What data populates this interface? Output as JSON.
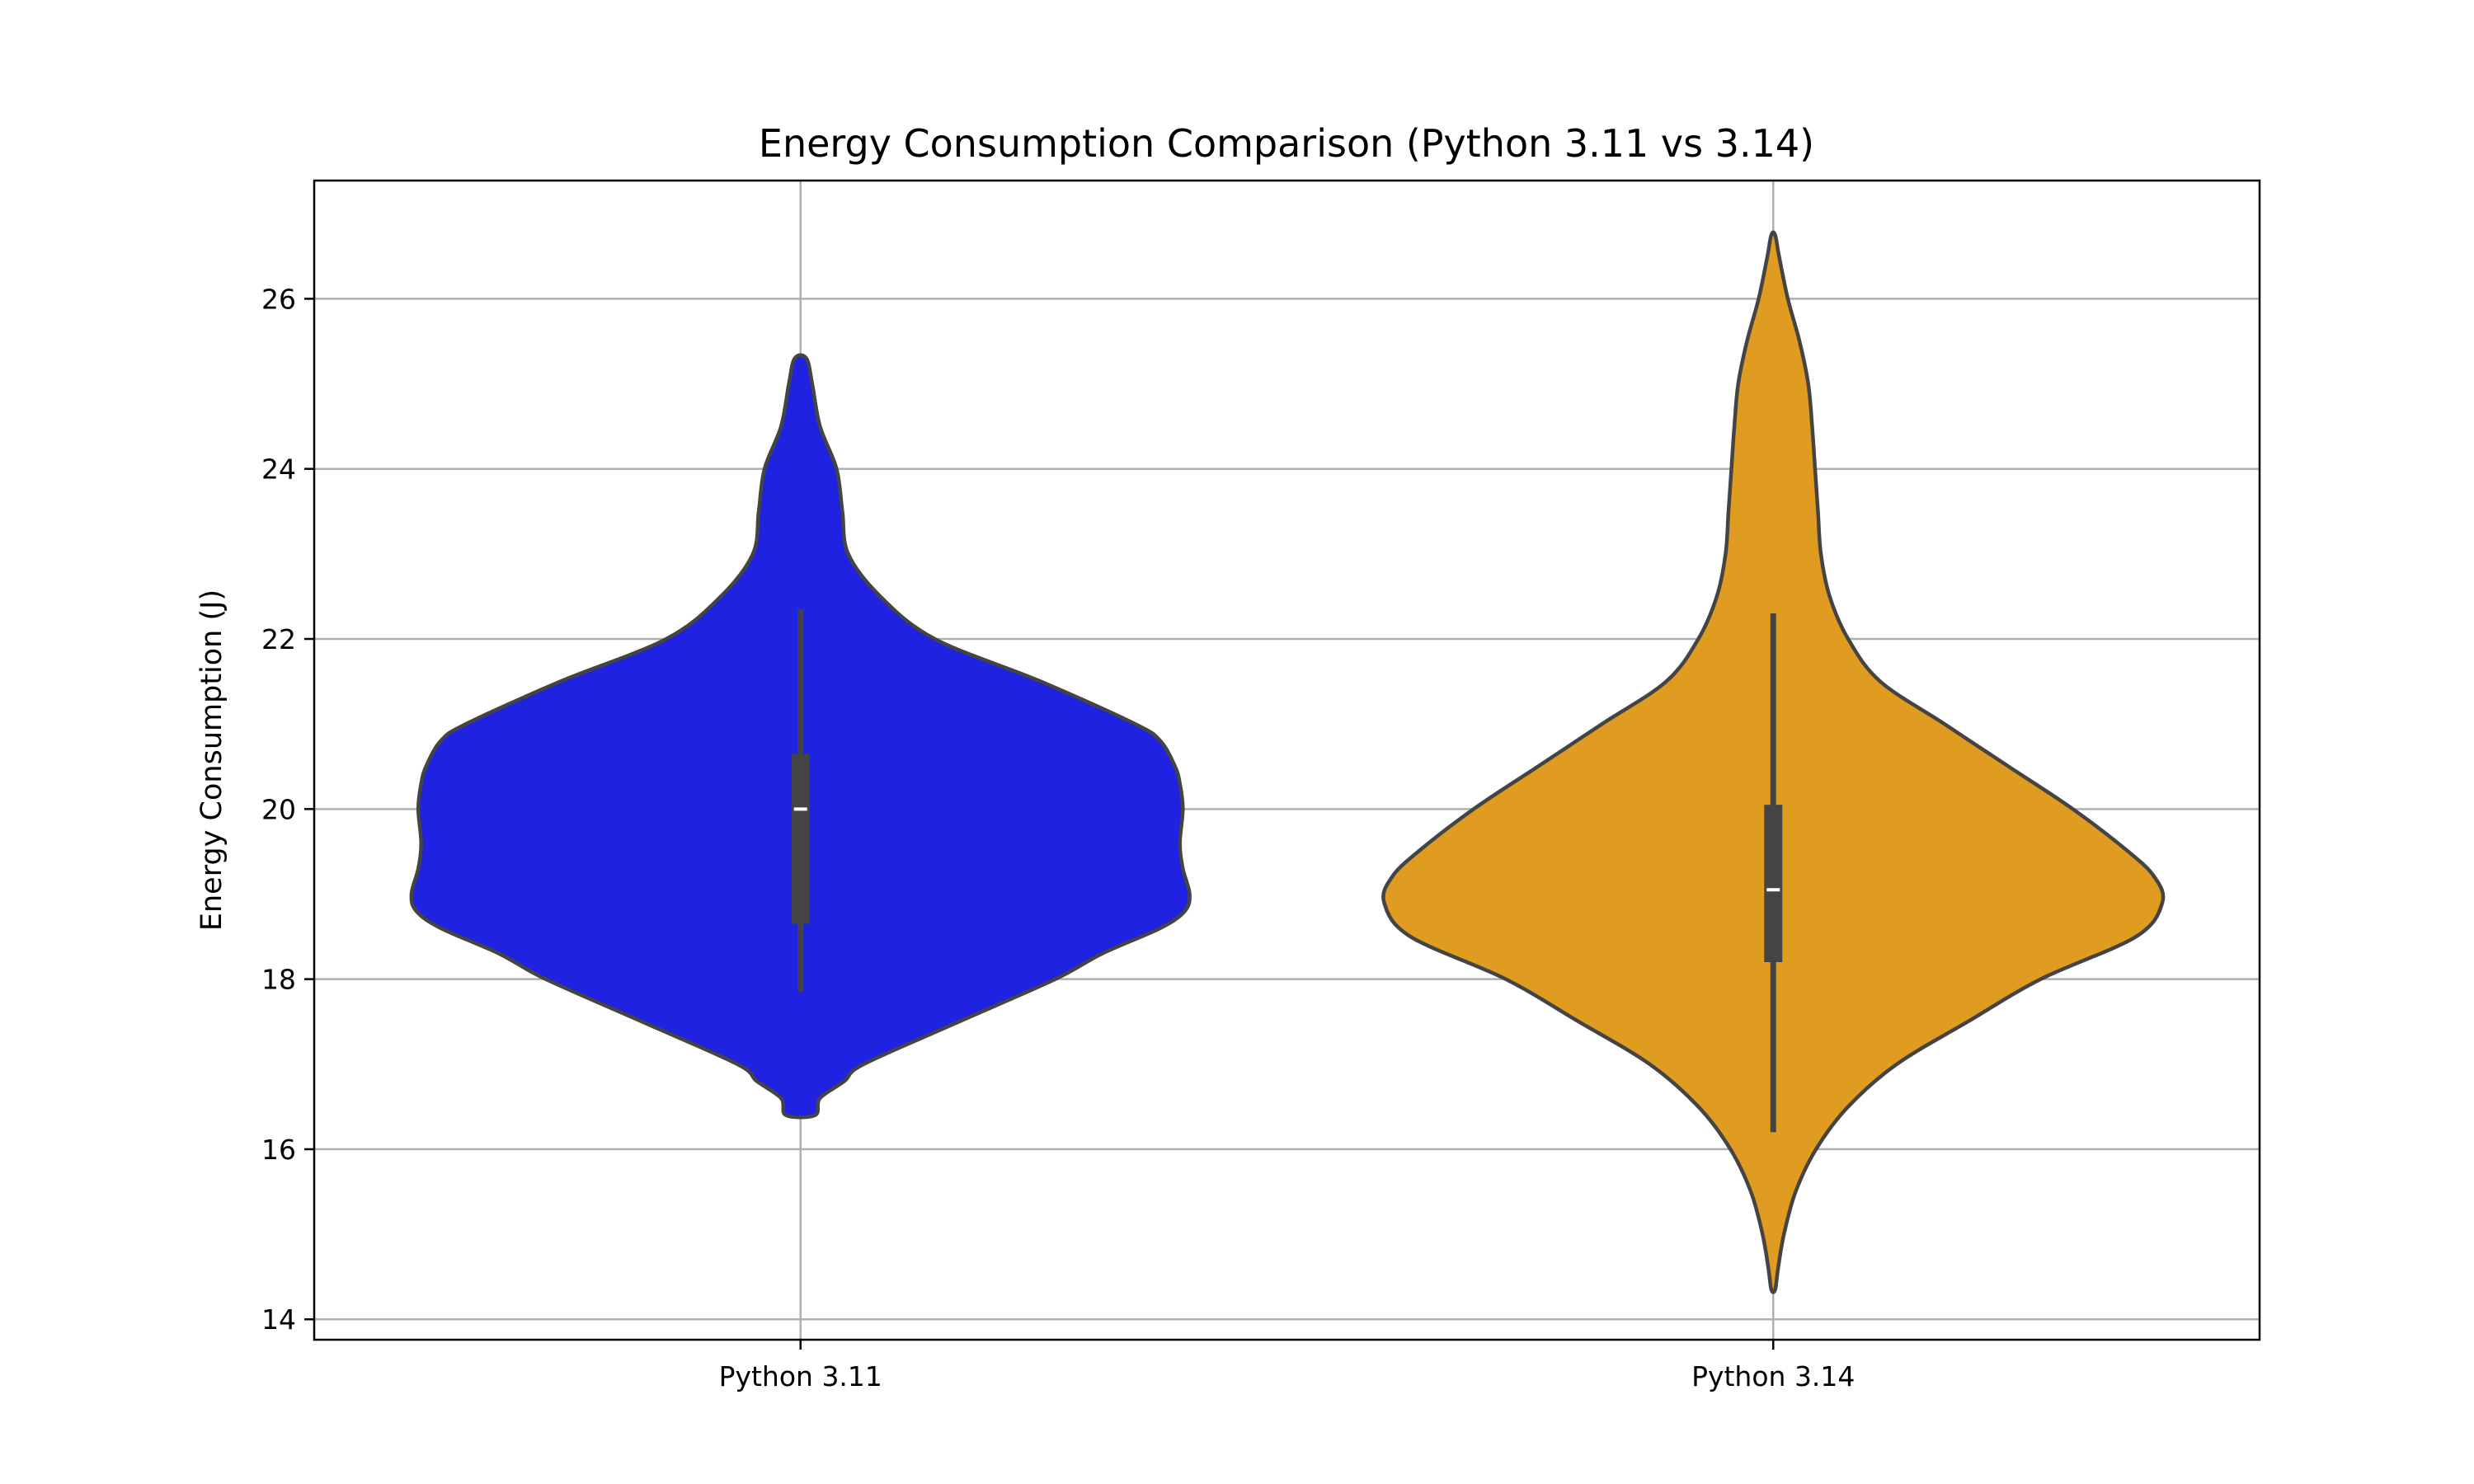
{
  "chart_data": {
    "type": "violin",
    "title": "Energy Consumption Comparison (Python 3.11 vs 3.14)",
    "xlabel": "",
    "ylabel": "Energy Consumption (J)",
    "categories": [
      "Python 3.11",
      "Python 3.14"
    ],
    "ylim": [
      13.76,
      27.39
    ],
    "xlim": [
      -0.5,
      1.5
    ],
    "yticks": [
      14,
      16,
      18,
      20,
      22,
      24,
      26
    ],
    "grid": true,
    "edge_color": "#444444",
    "series": [
      {
        "category": "Python 3.11",
        "color": "#1f22e0",
        "profile": [
          [
            16.4,
            0.015
          ],
          [
            16.6,
            0.02
          ],
          [
            16.8,
            0.045
          ],
          [
            17,
            0.065
          ],
          [
            17.5,
            0.163
          ],
          [
            18,
            0.262
          ],
          [
            18.3,
            0.31
          ],
          [
            18.6,
            0.37
          ],
          [
            18.8,
            0.395
          ],
          [
            19,
            0.4
          ],
          [
            19.3,
            0.393
          ],
          [
            19.6,
            0.39
          ],
          [
            20,
            0.393
          ],
          [
            20.3,
            0.39
          ],
          [
            20.5,
            0.385
          ],
          [
            20.8,
            0.37
          ],
          [
            21,
            0.344
          ],
          [
            21.5,
            0.247
          ],
          [
            22,
            0.138
          ],
          [
            22.5,
            0.082
          ],
          [
            23,
            0.049
          ],
          [
            23.5,
            0.043
          ],
          [
            24,
            0.037
          ],
          [
            24.5,
            0.02
          ],
          [
            25,
            0.012
          ],
          [
            25.3,
            0.006
          ]
        ],
        "whisker": [
          17.85,
          22.35
        ],
        "box": [
          18.65,
          20.65
        ],
        "median": 20.0
      },
      {
        "category": "Python 3.14",
        "color": "#e09c20",
        "profile": [
          [
            14.35,
            0.002
          ],
          [
            14.6,
            0.005
          ],
          [
            15,
            0.011
          ],
          [
            15.5,
            0.023
          ],
          [
            16,
            0.044
          ],
          [
            16.5,
            0.077
          ],
          [
            17,
            0.127
          ],
          [
            17.5,
            0.2
          ],
          [
            18,
            0.275
          ],
          [
            18.5,
            0.373
          ],
          [
            18.9,
            0.4
          ],
          [
            19.2,
            0.392
          ],
          [
            19.5,
            0.365
          ],
          [
            20,
            0.308
          ],
          [
            20.5,
            0.242
          ],
          [
            21,
            0.176
          ],
          [
            21.5,
            0.11
          ],
          [
            22,
            0.077
          ],
          [
            22.5,
            0.058
          ],
          [
            23,
            0.049
          ],
          [
            23.5,
            0.046
          ],
          [
            24,
            0.043
          ],
          [
            24.5,
            0.04
          ],
          [
            25,
            0.036
          ],
          [
            25.5,
            0.027
          ],
          [
            26,
            0.015
          ],
          [
            26.5,
            0.006
          ],
          [
            26.75,
            0.002
          ]
        ],
        "whisker": [
          16.2,
          22.3
        ],
        "box": [
          18.2,
          20.05
        ],
        "median": 19.05
      }
    ]
  }
}
